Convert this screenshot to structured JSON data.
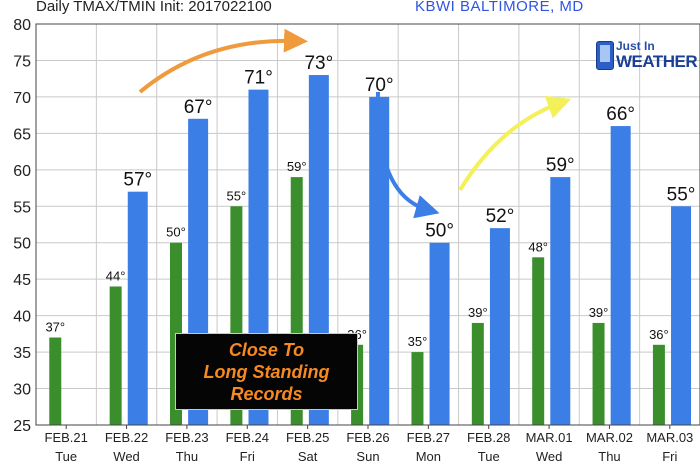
{
  "header": {
    "title": "Daily TMAX/TMIN Init: 2017022100",
    "station": "KBWI BALTIMORE, MD"
  },
  "logo": {
    "line1": "Just In",
    "line2": "WEATHER"
  },
  "callout": {
    "text": "Close To\nLong Standing\nRecords"
  },
  "colors": {
    "tmax": "#3b7ee6",
    "tmin": "#3a8f2c",
    "arrow_orange": "#f09a3e",
    "arrow_blue": "#3b7ee6",
    "arrow_yellow": "#f3f05a",
    "callout_text": "#f6891f"
  },
  "chart_data": {
    "type": "bar",
    "categories": [
      "FEB.21",
      "FEB.22",
      "FEB.23",
      "FEB.24",
      "FEB.25",
      "FEB.26",
      "FEB.27",
      "FEB.28",
      "MAR.01",
      "MAR.02",
      "MAR.03"
    ],
    "weekdays": [
      "Tue",
      "Wed",
      "Thu",
      "Fri",
      "Sat",
      "Sun",
      "Mon",
      "Tue",
      "Wed",
      "Thu",
      "Fri"
    ],
    "series": [
      {
        "key": "tmin",
        "values": [
          37,
          44,
          50,
          55,
          59,
          36,
          35,
          39,
          48,
          39,
          36
        ],
        "labels": [
          "37°",
          "44°",
          "50°",
          "55°",
          "59°",
          "36°",
          "35°",
          "39°",
          "48°",
          "39°",
          "36°"
        ]
      },
      {
        "key": "tmax",
        "values": [
          null,
          57,
          67,
          71,
          73,
          70,
          50,
          52,
          59,
          66,
          55
        ],
        "labels": [
          "",
          "57°",
          "67°",
          "71°",
          "73°",
          "70°",
          "50°",
          "52°",
          "59°",
          "66°",
          "55°"
        ]
      }
    ],
    "yticks": [
      "25",
      "30",
      "35",
      "40",
      "45",
      "50",
      "55",
      "60",
      "65",
      "70",
      "75",
      "80"
    ],
    "ylim": [
      25,
      80
    ],
    "grid": true,
    "legend": "none"
  }
}
